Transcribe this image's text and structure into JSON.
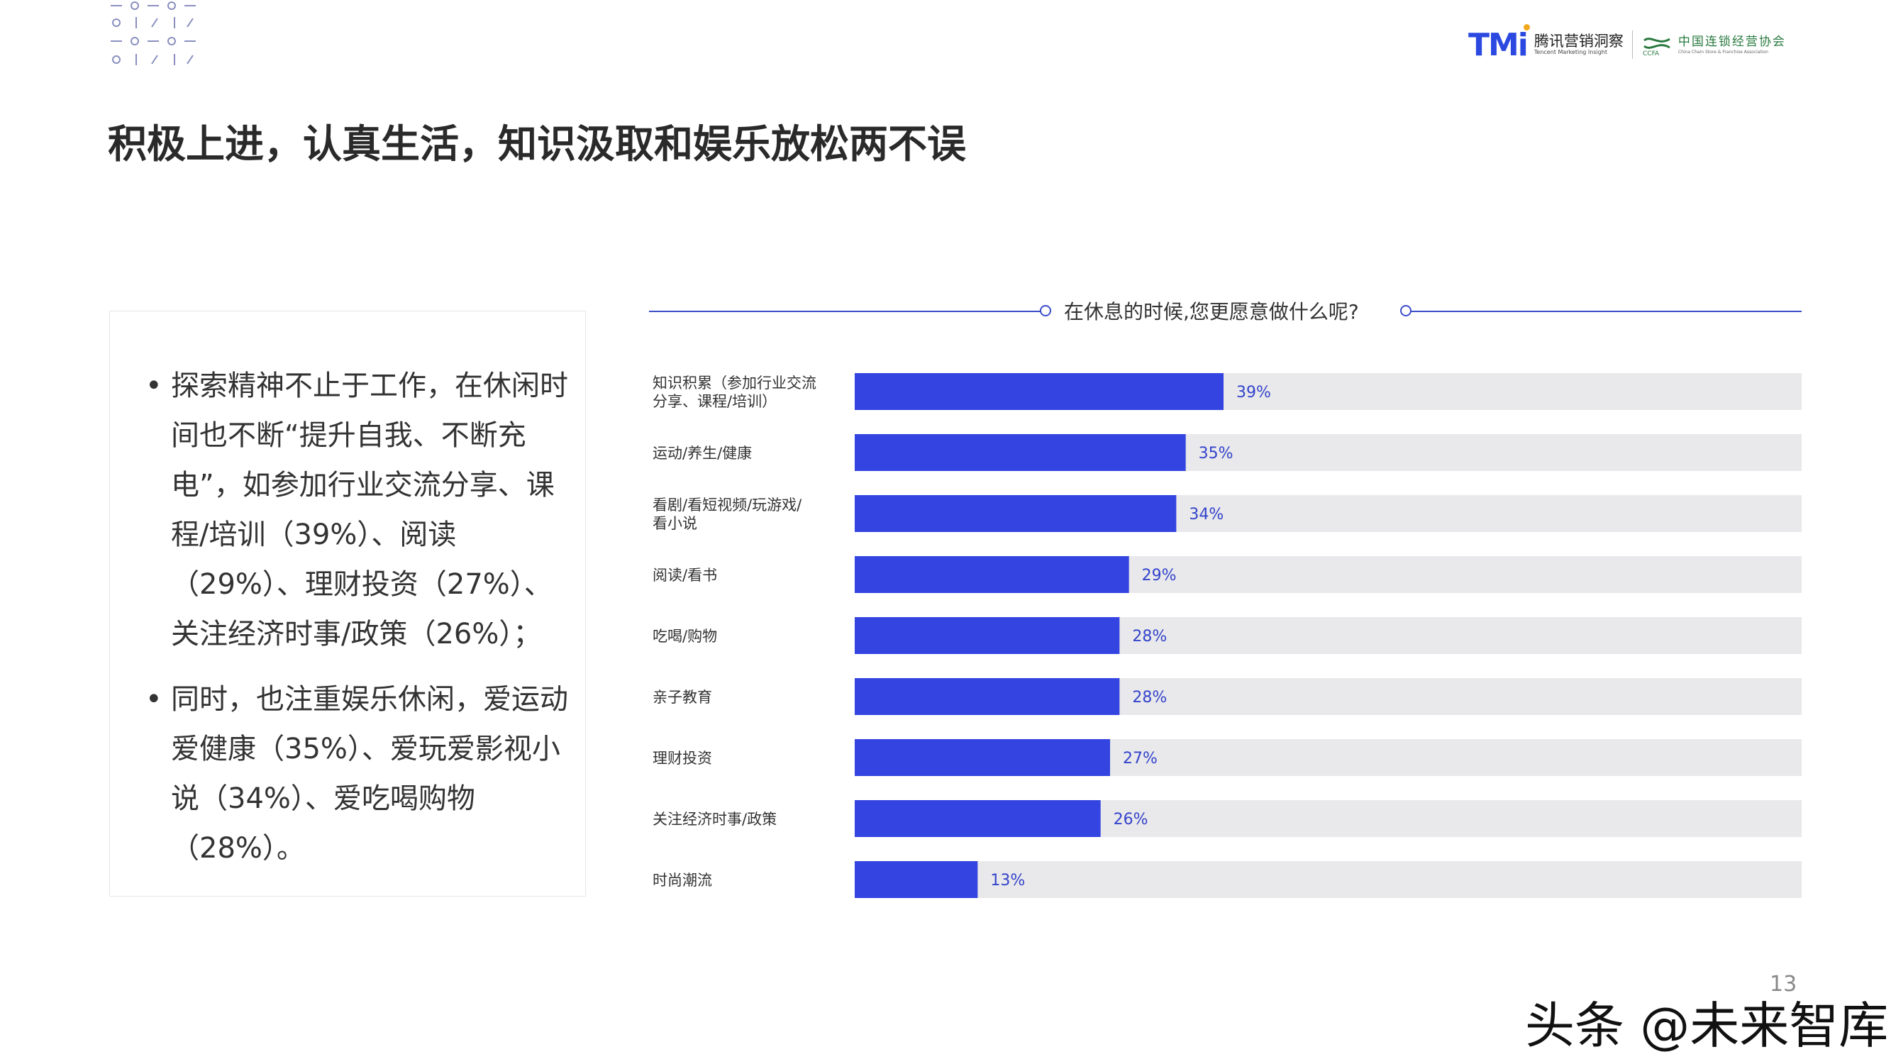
{
  "header": {
    "logo_tmi_mark": "TMi",
    "logo_tmi_cn": "腾讯营销洞察",
    "logo_tmi_en": "Tencent Marketing Insight",
    "logo_ccfa_cn": "中国连锁经营协会",
    "logo_ccfa_en": "China Chain Store & Franchise Association",
    "logo_ccfa_abbr": "CCFA"
  },
  "title": "积极上进，认真生活，知识汲取和娱乐放松两不误",
  "text_panel": {
    "bullets": [
      "探索精神不止于工作，在休闲时间也不断“提升自我、不断充电”，如参加行业交流分享、课程/培训（39%）、阅读（29%）、理财投资（27%）、关注经济时事/政策（26%）；",
      "同时，也注重娱乐休闲，爱运动爱健康（35%）、爱玩爱影视小说（34%）、爱吃喝购物（28%）。"
    ],
    "bullet_mark": "•"
  },
  "question": "在休息的时候,您更愿意做什么呢?",
  "chart_data": {
    "type": "bar",
    "orientation": "horizontal",
    "title": "在休息的时候,您更愿意做什么呢?",
    "categories": [
      [
        "知识积累（参加行业交流",
        "分享、课程/培训）"
      ],
      [
        "运动/养生/健康"
      ],
      [
        "看剧/看短视频/玩游戏/",
        "看小说"
      ],
      [
        "阅读/看书"
      ],
      [
        "吃喝/购物"
      ],
      [
        "亲子教育"
      ],
      [
        "理财投资"
      ],
      [
        "关注经济时事/政策"
      ],
      [
        "时尚潮流"
      ]
    ],
    "values": [
      39,
      35,
      34,
      29,
      28,
      28,
      27,
      26,
      13
    ],
    "value_labels": [
      "39%",
      "35%",
      "34%",
      "29%",
      "28%",
      "28%",
      "27%",
      "26%",
      "13%"
    ],
    "xlim": [
      0,
      100
    ],
    "colors": {
      "bar": "#3344e0",
      "track": "#e9e8ea",
      "label": "#3344cc"
    }
  },
  "page_number": "13",
  "watermark": "头条 @未来智库"
}
